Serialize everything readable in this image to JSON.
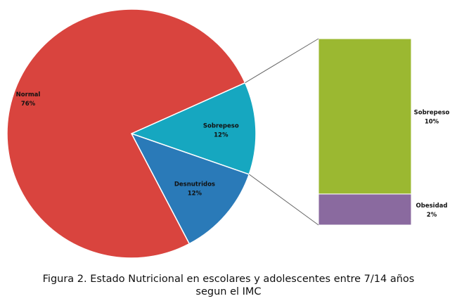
{
  "chart_data": {
    "type": "pie",
    "subtype": "bar-of-pie",
    "pie": {
      "slices": [
        {
          "name": "Normal",
          "value": 76,
          "label": "76%",
          "color": "#d9443e"
        },
        {
          "name": "Sobrepeso",
          "value": 12,
          "label": "12%",
          "color": "#16a7c0"
        },
        {
          "name": "Desnutridos",
          "value": 12,
          "label": "12%",
          "color": "#2a7ab8"
        }
      ]
    },
    "bar": {
      "exploded_from": "Sobrepeso",
      "segments": [
        {
          "name": "Sobrepeso",
          "value": 10,
          "label": "10%",
          "color": "#9bb831"
        },
        {
          "name": "Obesidad",
          "value": 2,
          "label": "2%",
          "color": "#8a6a9f"
        }
      ]
    },
    "legend": "none"
  },
  "caption": {
    "line1": "Figura 2. Estado Nutricional en escolares y adolescentes entre 7/14 años",
    "line2": "segun el IMC"
  }
}
